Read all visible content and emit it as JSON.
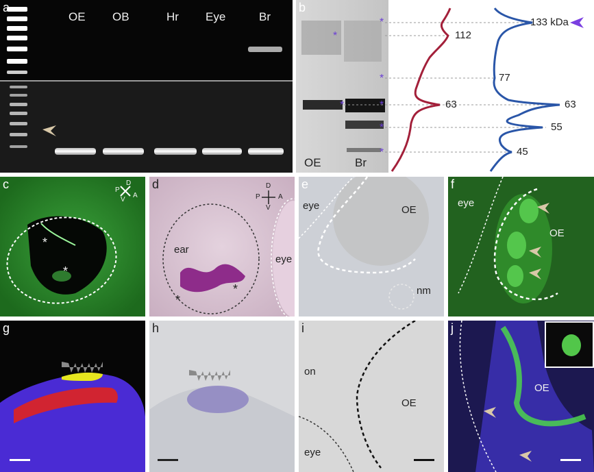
{
  "panel_letters": {
    "a": "a",
    "b": "b",
    "c": "c",
    "d": "d",
    "e": "e",
    "f": "f",
    "g": "g",
    "h": "h",
    "i": "i",
    "j": "j"
  },
  "panel_a": {
    "lane_labels": [
      "OE",
      "OB",
      "Hr",
      "Eye",
      "Br"
    ]
  },
  "panel_b": {
    "lane_labels": [
      "OE",
      "Br"
    ],
    "red_profile_labels": [
      "112",
      "63"
    ],
    "blue_profile_labels": [
      "133 kDa",
      "77",
      "63",
      "55",
      "45"
    ],
    "marker_symbol": "*",
    "colors": {
      "red_trace": "#a3203a",
      "blue_trace": "#2a56a8",
      "marker": "#6b3fd4"
    }
  },
  "panel_c": {
    "compass": {
      "d": "D",
      "v": "V",
      "p": "P",
      "a": "A"
    },
    "markers": [
      "*",
      "*"
    ]
  },
  "panel_d": {
    "compass": {
      "d": "D",
      "v": "V",
      "p": "P",
      "a": "A"
    },
    "labels": {
      "ear": "ear",
      "eye": "eye"
    },
    "markers": [
      "*",
      "*"
    ]
  },
  "panel_e": {
    "labels": {
      "eye": "eye",
      "oe": "OE",
      "nm": "nm"
    }
  },
  "panel_f": {
    "labels": {
      "eye": "eye",
      "oe": "OE"
    }
  },
  "panel_i": {
    "labels": {
      "on": "on",
      "oe": "OE",
      "eye": "eye"
    }
  },
  "panel_j": {
    "labels": {
      "oe": "OE"
    }
  },
  "colors": {
    "arrowhead": "#d8c8a8",
    "cilia_icon": "#7a7a7a"
  }
}
